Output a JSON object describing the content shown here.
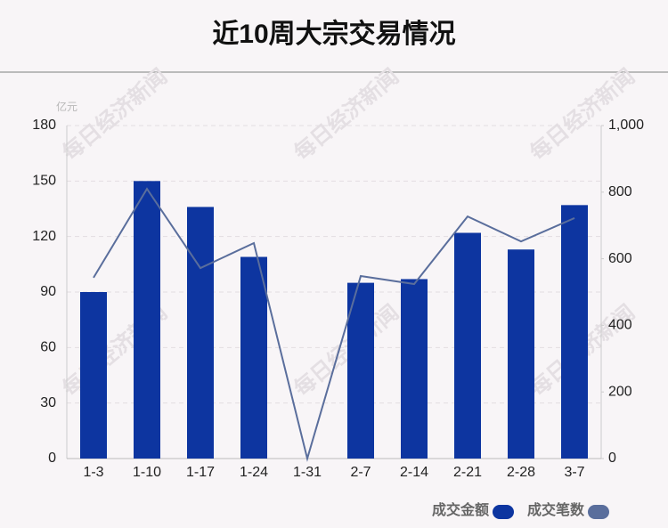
{
  "chart_data": {
    "type": "bar_line",
    "title": "近10周大宗交易情况",
    "y_unit": "亿元",
    "watermark": "每日经济新闻",
    "categories": [
      "1-3",
      "1-10",
      "1-17",
      "1-24",
      "1-31",
      "2-7",
      "2-14",
      "2-21",
      "2-28",
      "3-7"
    ],
    "series": [
      {
        "name": "成交金额",
        "color": "#0d35a0",
        "type": "bar",
        "axis": "y",
        "values": [
          90,
          150,
          136,
          109,
          0,
          95,
          97,
          122,
          113,
          137
        ]
      },
      {
        "name": "成交笔数",
        "color": "#5a6e9c",
        "type": "line",
        "axis": "y2",
        "values": [
          543,
          810,
          572,
          647,
          0,
          548,
          524,
          727,
          652,
          722
        ]
      }
    ],
    "ylim": [
      0,
      180
    ],
    "yticks": [
      0,
      30,
      60,
      90,
      120,
      150,
      180
    ],
    "y2lim": [
      0,
      1000
    ],
    "y2ticks": [
      0,
      200,
      400,
      600,
      800,
      {
        "value": 1000,
        "label": "1,000"
      }
    ],
    "grid": true,
    "legend": "bottom-right"
  }
}
